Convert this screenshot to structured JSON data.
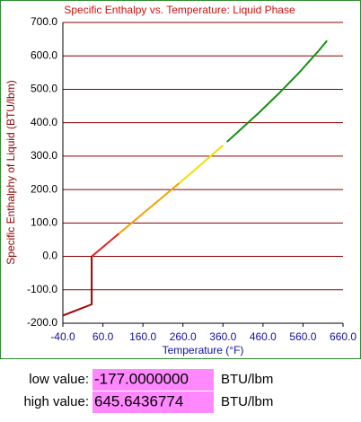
{
  "chart_data": {
    "type": "line",
    "title": "Specific Enthalpy vs. Temperature: Liquid Phase",
    "x_label": "Temperature (°F)",
    "y_label": "Specific Enthalphy of Liquid (BTU/lbm)",
    "xlim": [
      -40,
      660
    ],
    "ylim": [
      -200,
      700
    ],
    "xticks": [
      {
        "value": -40,
        "label": "-40.0"
      },
      {
        "value": 60,
        "label": "60.0"
      },
      {
        "value": 160,
        "label": "160.0"
      },
      {
        "value": 260,
        "label": "260.0"
      },
      {
        "value": 360,
        "label": "360.0"
      },
      {
        "value": 460,
        "label": "460.0"
      },
      {
        "value": 560,
        "label": "560.0"
      },
      {
        "value": 660,
        "label": "660.0"
      }
    ],
    "yticks": [
      {
        "value": -200,
        "label": "-200.0"
      },
      {
        "value": -100,
        "label": "-100.0"
      },
      {
        "value": 0,
        "label": "0.0"
      },
      {
        "value": 100,
        "label": "100.0"
      },
      {
        "value": 200,
        "label": "200.0"
      },
      {
        "value": 300,
        "label": "300.0"
      },
      {
        "value": 400,
        "label": "400.0"
      },
      {
        "value": 500,
        "label": "500.0"
      },
      {
        "value": 600,
        "label": "600.0"
      },
      {
        "value": 700,
        "label": "700.0"
      }
    ],
    "grid": true,
    "grid_color": "#8b0000",
    "series": [
      {
        "color": "#a00000",
        "x": [
          -40,
          32,
          32
        ],
        "values": [
          -177,
          -143.5,
          0
        ]
      },
      {
        "color": "#e02020",
        "x": [
          32,
          60,
          100
        ],
        "values": [
          0,
          28,
          68
        ]
      },
      {
        "color": "#f5a000",
        "x": [
          100,
          160,
          212,
          250
        ],
        "values": [
          68,
          128.1,
          180.2,
          218.6
        ]
      },
      {
        "color": "#f0e000",
        "x": [
          250,
          300,
          360
        ],
        "values": [
          218.6,
          269.7,
          332.3
        ]
      },
      {
        "color": "#109010",
        "x": [
          370,
          400,
          450,
          500,
          550,
          600,
          620
        ],
        "values": [
          342.7,
          375.1,
          430.1,
          487.9,
          549.5,
          616.7,
          645.6
        ]
      }
    ]
  },
  "readouts": [
    {
      "label": "low value:",
      "value": "-177.0000000",
      "unit": "BTU/lbm"
    },
    {
      "label": "high value:",
      "value": "645.6436774",
      "unit": "BTU/lbm"
    }
  ]
}
